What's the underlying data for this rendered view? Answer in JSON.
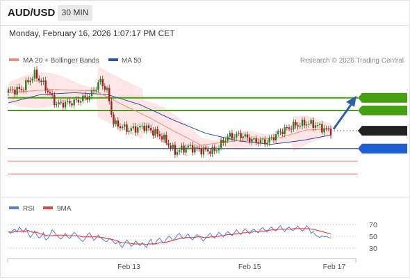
{
  "header": {
    "symbol": "AUD/USD",
    "timeframe": "30 MIN",
    "datetime": "Monday, February 16, 2026 1:07:17 PM CET"
  },
  "legend": {
    "ma20_label": "MA 20 + Bollinger Bands",
    "ma50_label": "MA 50",
    "credit": "Research © 2026 Trading Central"
  },
  "indicator_legend": {
    "rsi_label": "RSI",
    "ma_label": "9MA"
  },
  "colors": {
    "bull": "#2e7d1f",
    "bear": "#a31c1c",
    "ma20": "#f28b82",
    "ma50": "#2a4fa8",
    "band": "#fde2e0",
    "resistance": "#44a00e",
    "support": "#1f5fd4",
    "target": "#e57373",
    "arrow": "#2d5fa8",
    "rsi": "#5b7fd6",
    "rsi_ma": "#e04646"
  },
  "chart_data": [
    {
      "type": "candlestick",
      "title": "AUD/USD 30 MIN",
      "x_ticks": [
        "Feb 13",
        "Feb 15",
        "Feb 17"
      ],
      "ylim": [
        0.70055,
        0.71535
      ],
      "current_price": 0.7081,
      "levels": [
        {
          "label": "0.7120",
          "value": 0.712,
          "kind": "resistance"
        },
        {
          "label": "0.7105",
          "value": 0.7105,
          "kind": "resistance"
        },
        {
          "label": "0.7081",
          "value": 0.7081,
          "kind": "current"
        },
        {
          "label": "0.7060",
          "value": 0.706,
          "kind": "support"
        },
        {
          "label": "0.7045",
          "value": 0.7045,
          "kind": "target"
        },
        {
          "label": "0.7030",
          "value": 0.703,
          "kind": "target"
        }
      ],
      "series": [
        {
          "name": "MA 20 + Bollinger Bands"
        },
        {
          "name": "MA 50"
        }
      ],
      "candle_anchors": [
        {
          "x": 0,
          "close": 0.7128
        },
        {
          "x": 6,
          "close": 0.713
        },
        {
          "x": 12,
          "close": 0.7148
        },
        {
          "x": 16,
          "close": 0.7136
        },
        {
          "x": 22,
          "close": 0.7112
        },
        {
          "x": 30,
          "close": 0.7115
        },
        {
          "x": 37,
          "close": 0.7122
        },
        {
          "x": 42,
          "close": 0.714
        },
        {
          "x": 45,
          "close": 0.7128
        },
        {
          "x": 48,
          "close": 0.709
        },
        {
          "x": 55,
          "close": 0.7082
        },
        {
          "x": 62,
          "close": 0.7086
        },
        {
          "x": 70,
          "close": 0.7074
        },
        {
          "x": 76,
          "close": 0.7056
        },
        {
          "x": 82,
          "close": 0.7062
        },
        {
          "x": 88,
          "close": 0.7058
        },
        {
          "x": 94,
          "close": 0.7057
        },
        {
          "x": 100,
          "close": 0.7074
        },
        {
          "x": 106,
          "close": 0.7076
        },
        {
          "x": 112,
          "close": 0.7069
        },
        {
          "x": 118,
          "close": 0.7068
        },
        {
          "x": 124,
          "close": 0.708
        },
        {
          "x": 130,
          "close": 0.7087
        },
        {
          "x": 136,
          "close": 0.709
        },
        {
          "x": 140,
          "close": 0.7088
        },
        {
          "x": 144,
          "close": 0.7083
        },
        {
          "x": 147,
          "close": 0.7081
        }
      ],
      "ma20_points": [
        {
          "x": 0,
          "y": 0.7126
        },
        {
          "x": 20,
          "y": 0.713
        },
        {
          "x": 40,
          "y": 0.7128
        },
        {
          "x": 52,
          "y": 0.7112
        },
        {
          "x": 64,
          "y": 0.7097
        },
        {
          "x": 76,
          "y": 0.708
        },
        {
          "x": 88,
          "y": 0.7064
        },
        {
          "x": 100,
          "y": 0.7068
        },
        {
          "x": 112,
          "y": 0.7071
        },
        {
          "x": 124,
          "y": 0.7073
        },
        {
          "x": 136,
          "y": 0.7082
        },
        {
          "x": 147,
          "y": 0.7083
        }
      ],
      "ma50_points": [
        {
          "x": 0,
          "y": 0.7114
        },
        {
          "x": 15,
          "y": 0.7124
        },
        {
          "x": 30,
          "y": 0.7126
        },
        {
          "x": 45,
          "y": 0.7124
        },
        {
          "x": 60,
          "y": 0.7112
        },
        {
          "x": 75,
          "y": 0.7094
        },
        {
          "x": 90,
          "y": 0.7078
        },
        {
          "x": 105,
          "y": 0.7069
        },
        {
          "x": 120,
          "y": 0.7065
        },
        {
          "x": 135,
          "y": 0.707
        },
        {
          "x": 147,
          "y": 0.7076
        }
      ],
      "projection": {
        "from": 0.7083,
        "to": 0.712
      }
    },
    {
      "type": "line",
      "title": "RSI",
      "y_ticks": [
        70,
        50,
        30
      ],
      "ylim": [
        17,
        83
      ],
      "series": [
        {
          "name": "RSI",
          "values": [
            58,
            55,
            60,
            62,
            57,
            66,
            61,
            57,
            64,
            55,
            48,
            53,
            59,
            52,
            47,
            50,
            56,
            44,
            46,
            53,
            61,
            57,
            52,
            48,
            45,
            50,
            55,
            49,
            46,
            52,
            57,
            53,
            48,
            44,
            41,
            46,
            52,
            56,
            50,
            43,
            47,
            52,
            48,
            45,
            42,
            41,
            46,
            44,
            40,
            37,
            42,
            35,
            31,
            38,
            44,
            39,
            33,
            36,
            42,
            38,
            34,
            39,
            35,
            31,
            40,
            45,
            36,
            38,
            44,
            47,
            41,
            39,
            45,
            50,
            48,
            43,
            46,
            52,
            55,
            49,
            46,
            50,
            54,
            47,
            44,
            49,
            53,
            50,
            46,
            42,
            47,
            51,
            55,
            50,
            47,
            52,
            57,
            53,
            49,
            54,
            58,
            55,
            51,
            56,
            61,
            57,
            53,
            59,
            63,
            58,
            54,
            60,
            62,
            58,
            56,
            62,
            65,
            60,
            57,
            63,
            66,
            61,
            59,
            64,
            68,
            62,
            58,
            63,
            66,
            61,
            60,
            64,
            67,
            63,
            59,
            62,
            68,
            64,
            55,
            58,
            52,
            50,
            48,
            51,
            49,
            50,
            48,
            47
          ]
        },
        {
          "name": "9MA",
          "values": [
            58,
            57,
            57,
            58,
            58,
            59,
            59,
            59,
            59,
            60,
            58,
            57,
            57,
            57,
            55,
            54,
            53,
            52,
            51,
            51,
            51,
            52,
            52,
            52,
            52,
            52,
            52,
            51,
            51,
            51,
            51,
            51,
            51,
            50,
            49,
            49,
            49,
            49,
            49,
            49,
            49,
            49,
            48,
            48,
            47,
            46,
            46,
            45,
            44,
            43,
            42,
            40,
            39,
            39,
            39,
            38,
            38,
            37,
            37,
            37,
            37,
            37,
            37,
            36,
            37,
            37,
            37,
            37,
            38,
            39,
            39,
            39,
            40,
            41,
            42,
            43,
            44,
            45,
            46,
            47,
            47,
            48,
            48,
            48,
            48,
            48,
            49,
            49,
            49,
            48,
            48,
            48,
            49,
            49,
            49,
            50,
            50,
            51,
            51,
            52,
            53,
            53,
            53,
            54,
            54,
            55,
            55,
            56,
            56,
            57,
            57,
            57,
            58,
            58,
            58,
            59,
            59,
            59,
            60,
            60,
            61,
            61,
            61,
            62,
            62,
            62,
            62,
            62,
            62,
            62,
            63,
            63,
            63,
            63,
            63,
            63,
            63,
            63,
            62,
            62,
            61,
            60,
            59,
            58,
            57,
            56,
            55,
            54
          ]
        }
      ]
    }
  ]
}
